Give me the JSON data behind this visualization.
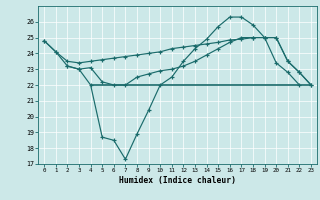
{
  "xlabel": "Humidex (Indice chaleur)",
  "bg_color": "#cce8e8",
  "line_color": "#1a6b6b",
  "grid_color": "#ffffff",
  "line_zigzag_x": [
    0,
    1,
    2,
    3,
    4,
    5,
    6,
    7,
    8,
    9,
    10,
    11,
    12,
    13,
    14,
    15,
    16,
    17,
    18,
    19,
    20,
    21,
    22
  ],
  "line_zigzag_y": [
    24.8,
    24.1,
    23.2,
    23.0,
    22.0,
    18.7,
    18.5,
    17.3,
    18.9,
    20.4,
    22.0,
    22.5,
    23.5,
    24.3,
    24.9,
    25.7,
    26.3,
    26.3,
    25.8,
    25.0,
    23.4,
    22.8,
    22.0
  ],
  "line_upper_x": [
    0,
    1,
    2,
    3,
    4,
    5,
    6,
    7,
    8,
    9,
    10,
    11,
    12,
    13,
    14,
    15,
    16,
    17,
    18,
    19,
    20,
    21,
    22,
    23
  ],
  "line_upper_y": [
    24.8,
    24.1,
    23.5,
    23.4,
    23.5,
    23.6,
    23.7,
    23.8,
    23.9,
    24.0,
    24.1,
    24.3,
    24.4,
    24.5,
    24.6,
    24.7,
    24.85,
    24.9,
    25.0,
    25.0,
    25.0,
    23.5,
    22.8,
    22.0
  ],
  "line_mid_x": [
    2,
    3,
    4,
    5,
    6,
    7,
    8,
    9,
    10,
    11,
    12,
    13,
    14,
    15,
    16,
    17,
    18,
    19,
    20,
    21,
    22,
    23
  ],
  "line_mid_y": [
    23.2,
    23.0,
    23.1,
    22.2,
    22.0,
    22.0,
    22.5,
    22.7,
    22.9,
    23.0,
    23.2,
    23.5,
    23.9,
    24.3,
    24.7,
    25.0,
    25.0,
    25.0,
    25.0,
    23.5,
    22.8,
    22.0
  ],
  "hline_x": [
    4,
    23
  ],
  "hline_y": [
    22.0,
    22.0
  ],
  "ylim": [
    17,
    27
  ],
  "xlim": [
    -0.5,
    23.5
  ],
  "yticks": [
    17,
    18,
    19,
    20,
    21,
    22,
    23,
    24,
    25,
    26
  ],
  "xticks": [
    0,
    1,
    2,
    3,
    4,
    5,
    6,
    7,
    8,
    9,
    10,
    11,
    12,
    13,
    14,
    15,
    16,
    17,
    18,
    19,
    20,
    21,
    22,
    23
  ]
}
